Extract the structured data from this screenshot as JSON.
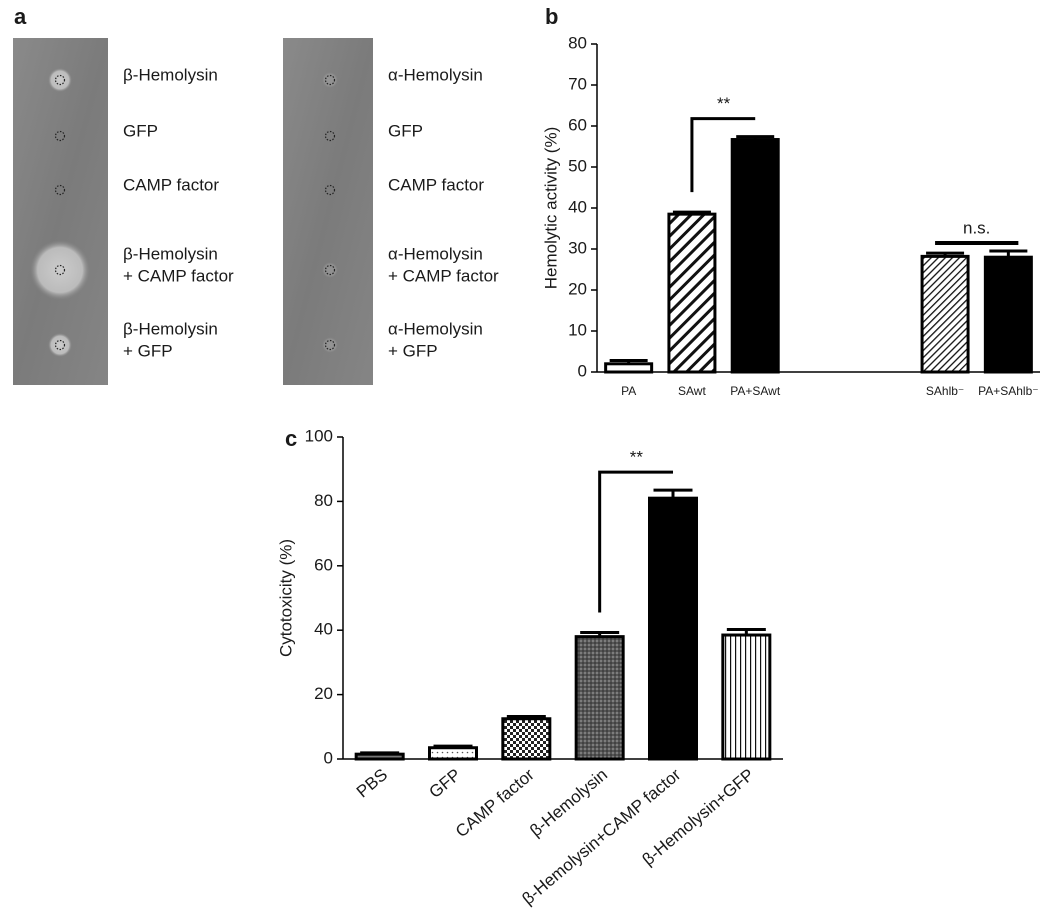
{
  "panel_a": {
    "label": "a",
    "plates": [
      {
        "labels": [
          [
            "β-Hemolysin"
          ],
          [
            "GFP"
          ],
          [
            "CAMP factor"
          ],
          [
            "β-Hemolysin",
            "+ CAMP factor"
          ],
          [
            "β-Hemolysin",
            "+ GFP"
          ]
        ]
      },
      {
        "labels": [
          [
            "α-Hemolysin"
          ],
          [
            "GFP"
          ],
          [
            "CAMP factor"
          ],
          [
            "α-Hemolysin",
            "+ CAMP factor"
          ],
          [
            "α-Hemolysin",
            "+ GFP"
          ]
        ]
      }
    ]
  },
  "chart_data": [
    {
      "type": "bar",
      "panel_label": "b",
      "ylabel": "Hemolytic activity (%)",
      "categories": [
        "PA",
        "SAwt",
        "PA+SAwt",
        null,
        null,
        "SAhlb⁻",
        "PA+SAhlb⁻"
      ],
      "values": [
        2,
        38.5,
        56.7,
        null,
        null,
        28.2,
        28
      ],
      "errors": [
        0.8,
        0.5,
        0.7,
        null,
        null,
        0.8,
        1.5
      ],
      "fills": [
        "white",
        "hatch",
        "black",
        null,
        null,
        "fine-hatch",
        "black"
      ],
      "ylim": [
        0,
        80
      ],
      "yticks": [
        0,
        10,
        20,
        30,
        40,
        50,
        60,
        70,
        80
      ],
      "annotations": [
        {
          "text": "**",
          "from": 1,
          "to": 2,
          "style": "bracket"
        },
        {
          "text": "n.s.",
          "from": 5,
          "to": 6,
          "style": "line"
        }
      ]
    },
    {
      "type": "bar",
      "panel_label": "c",
      "ylabel": "Cytotoxicity (%)",
      "categories": [
        "PBS",
        "GFP",
        "CAMP factor",
        "β-Hemolysin",
        "β-Hemolysin+CAMP factor",
        "β-Hemolysin+GFP"
      ],
      "values": [
        1.5,
        3.5,
        12.5,
        38,
        81,
        38.5
      ],
      "errors": [
        0.4,
        0.5,
        0.7,
        1.3,
        2.5,
        1.7
      ],
      "fills": [
        "gray",
        "dots",
        "checker",
        "dense",
        "black",
        "vstripe"
      ],
      "ylim": [
        0,
        100
      ],
      "yticks": [
        0,
        20,
        40,
        60,
        80,
        100
      ],
      "annotations": [
        {
          "text": "**",
          "from": 3,
          "to": 4,
          "style": "bracket"
        }
      ]
    }
  ]
}
